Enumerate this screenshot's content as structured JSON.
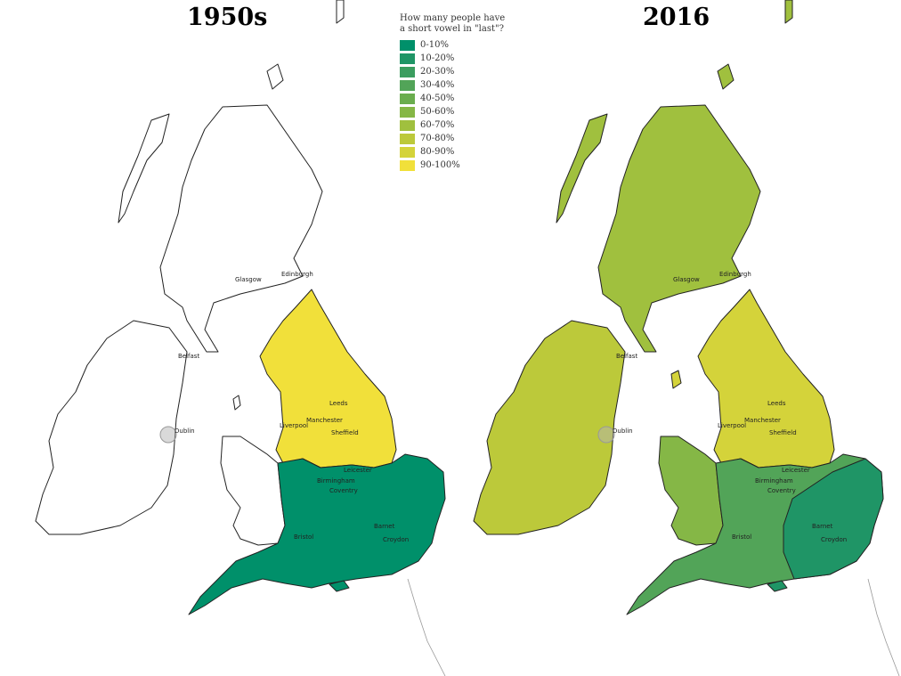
{
  "titles": {
    "left": "1950s",
    "right": "2016"
  },
  "legend": {
    "title_line1": "How many people have",
    "title_line2": "a short vowel in \"last\"?",
    "items": [
      {
        "label": "0-10%",
        "color": "#00906a"
      },
      {
        "label": "10-20%",
        "color": "#1f9566"
      },
      {
        "label": "20-30%",
        "color": "#3b9d5f"
      },
      {
        "label": "30-40%",
        "color": "#52a458"
      },
      {
        "label": "40-50%",
        "color": "#6aad4e"
      },
      {
        "label": "50-60%",
        "color": "#85b746"
      },
      {
        "label": "60-70%",
        "color": "#a0c03e"
      },
      {
        "label": "70-80%",
        "color": "#bcc93a"
      },
      {
        "label": "80-90%",
        "color": "#d4d33a"
      },
      {
        "label": "90-100%",
        "color": "#f1e03a"
      }
    ]
  },
  "cities": [
    "Glasgow",
    "Edinburgh",
    "Belfast",
    "Dublin",
    "Leeds",
    "Manchester",
    "Liverpool",
    "Sheffield",
    "Leicester",
    "Birmingham",
    "Coventry",
    "Bristol",
    "Barnet",
    "Croydon"
  ],
  "map_colors": {
    "outline": "#222222",
    "blank": "#ffffff",
    "south_1950": "#00906a",
    "north_1950": "#f1e03a",
    "south_2016": "#52a458",
    "southeast_2016": "#1f9566",
    "midlands_2016": "#85b746",
    "north_2016": "#d4d33a",
    "scotland_2016": "#a0c03e",
    "ireland_2016": "#bcc93a"
  }
}
